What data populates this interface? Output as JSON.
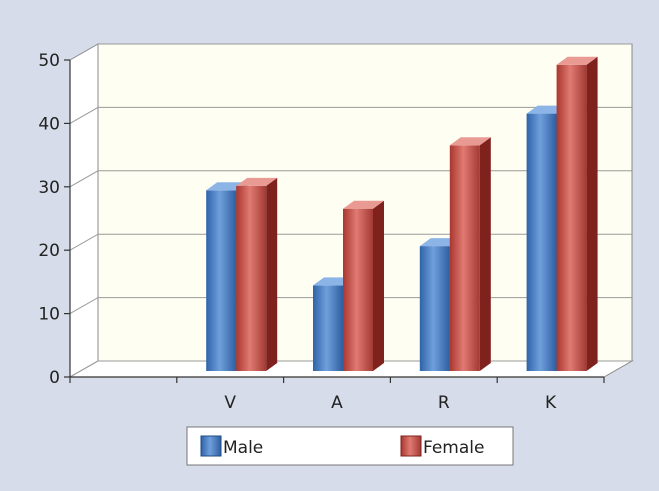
{
  "chart_data": {
    "type": "bar",
    "categories": [
      "",
      "V",
      "A",
      "R",
      "K"
    ],
    "series": [
      {
        "name": "Male",
        "values": [
          null,
          28.5,
          13.5,
          19.7,
          40.6
        ],
        "color": "#4a7fc6"
      },
      {
        "name": "Female",
        "values": [
          null,
          29.2,
          25.6,
          35.6,
          48.3
        ],
        "color": "#c8504a"
      }
    ],
    "ylim": [
      0,
      50
    ],
    "yticks": [
      0,
      10,
      20,
      30,
      40,
      50
    ],
    "grid": true,
    "three_d": true,
    "legend_position": "bottom-center",
    "background": "#d6dce9",
    "plot_background": "#fffef2"
  }
}
